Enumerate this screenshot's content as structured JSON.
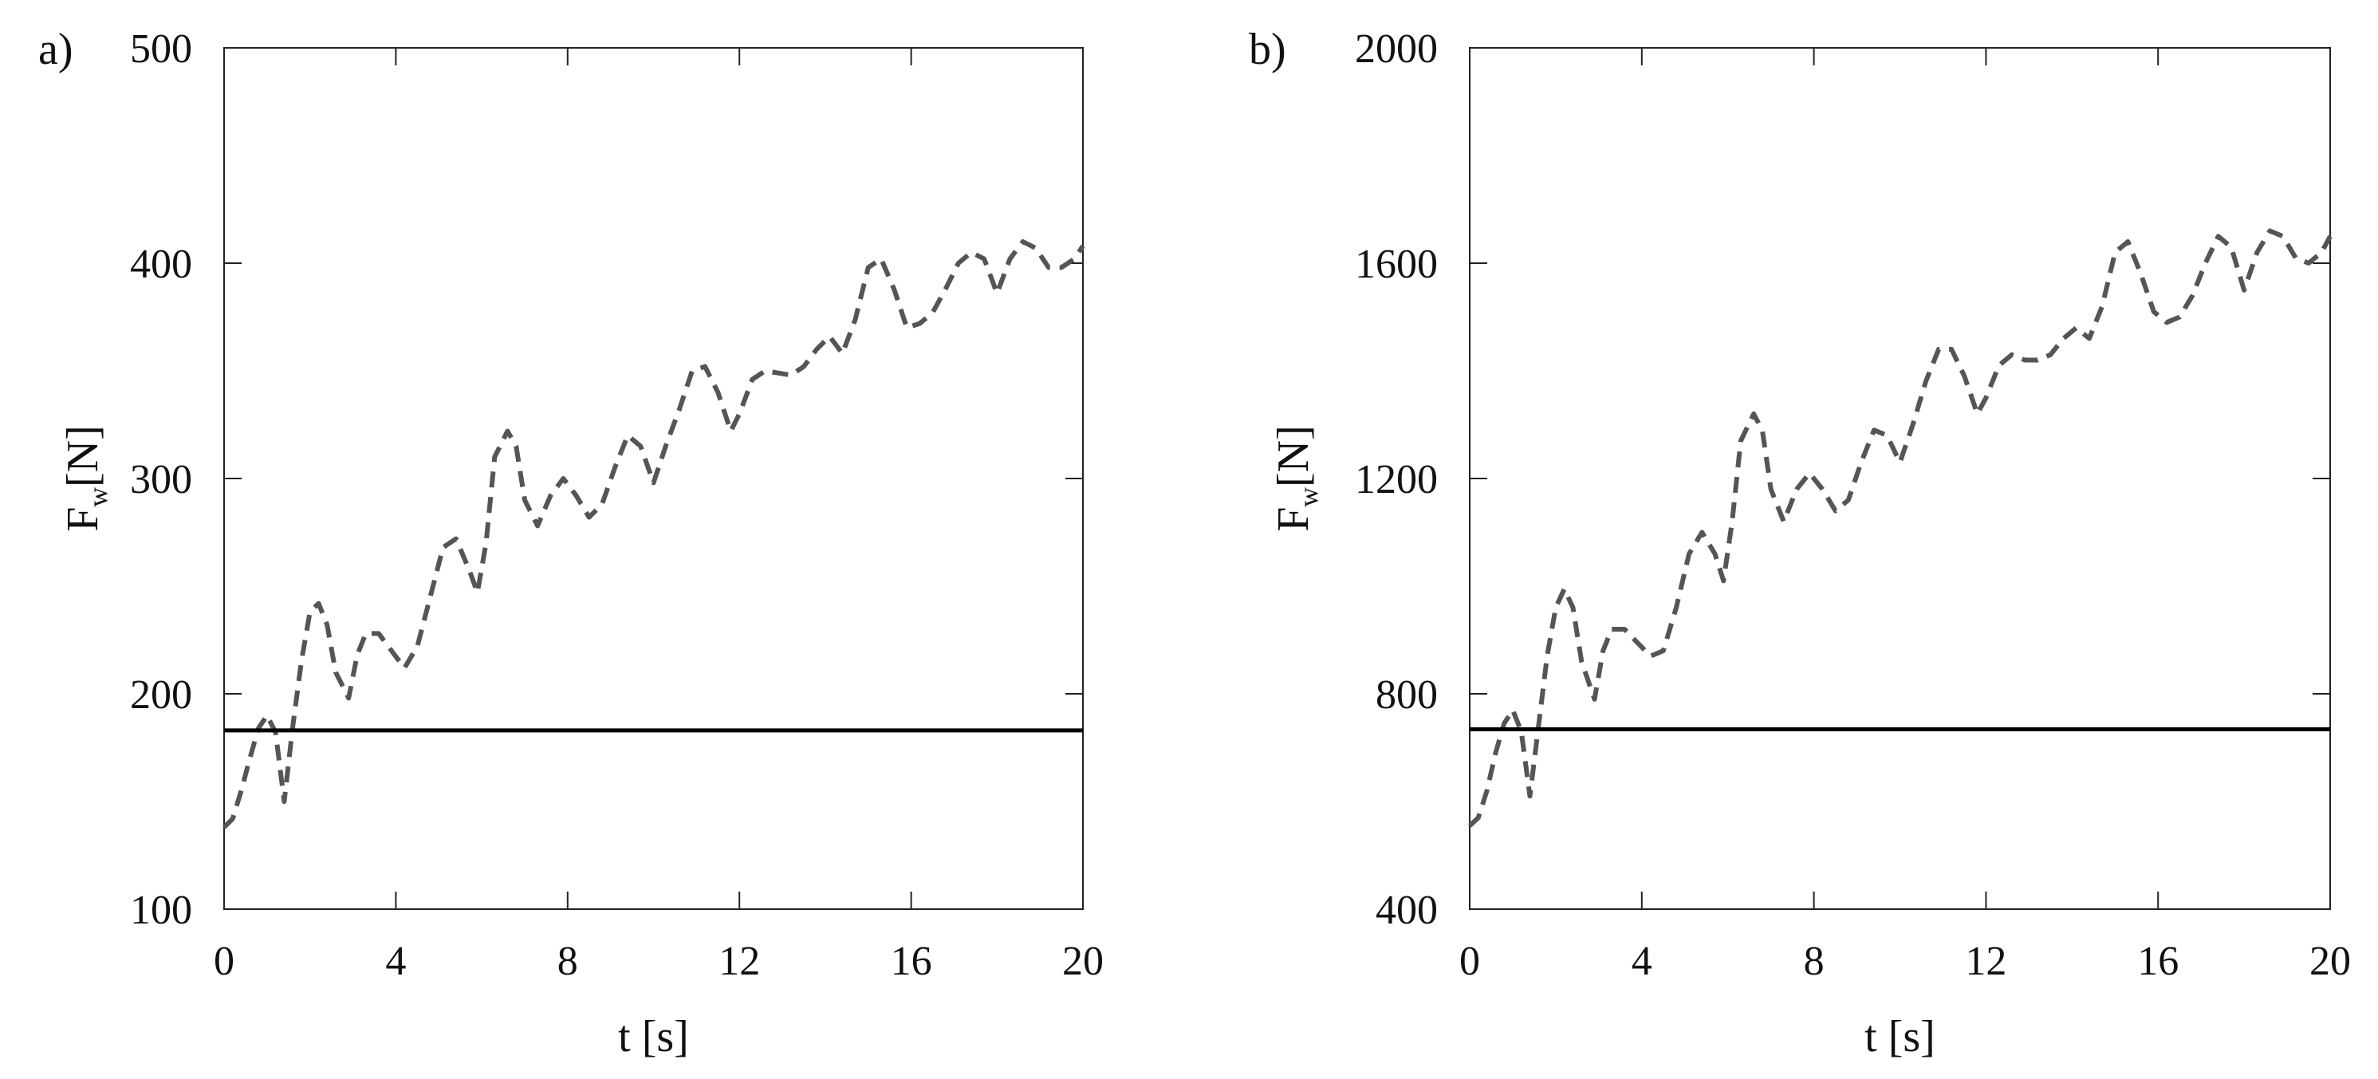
{
  "chart_data": [
    {
      "type": "line",
      "panel_label": "a)",
      "xlabel": "t [s]",
      "ylabel_main": "F",
      "ylabel_sub": "w",
      "ylabel_unit": "[N]",
      "xlim": [
        0,
        20
      ],
      "ylim": [
        100,
        500
      ],
      "xticks": [
        0,
        4,
        8,
        12,
        16,
        20
      ],
      "yticks": [
        100,
        200,
        300,
        400,
        500
      ],
      "grid": false,
      "series": [
        {
          "style": "dashed",
          "color": "#555555",
          "x": [
            0,
            0.2,
            0.4,
            0.6,
            0.8,
            1.0,
            1.2,
            1.4,
            1.6,
            1.8,
            2.0,
            2.2,
            2.4,
            2.6,
            2.9,
            3.1,
            3.3,
            3.6,
            3.9,
            4.2,
            4.5,
            4.8,
            5.1,
            5.4,
            5.7,
            5.9,
            6.1,
            6.3,
            6.6,
            6.8,
            7.0,
            7.3,
            7.6,
            7.9,
            8.2,
            8.5,
            8.8,
            9.1,
            9.4,
            9.7,
            10.0,
            10.3,
            10.6,
            10.9,
            11.2,
            11.5,
            11.8,
            12.0,
            12.3,
            12.6,
            12.9,
            13.2,
            13.5,
            13.8,
            14.1,
            14.4,
            14.7,
            15.0,
            15.3,
            15.6,
            15.9,
            16.2,
            16.5,
            16.8,
            17.1,
            17.4,
            17.7,
            18.0,
            18.3,
            18.6,
            18.9,
            19.2,
            19.5,
            19.8,
            20.0
          ],
          "y": [
            138,
            142,
            155,
            170,
            184,
            190,
            182,
            150,
            185,
            215,
            238,
            242,
            232,
            210,
            198,
            218,
            228,
            228,
            220,
            212,
            222,
            245,
            268,
            272,
            258,
            247,
            270,
            310,
            322,
            315,
            290,
            278,
            292,
            300,
            292,
            282,
            288,
            305,
            320,
            315,
            298,
            316,
            332,
            350,
            352,
            340,
            322,
            330,
            346,
            350,
            349,
            348,
            352,
            360,
            366,
            358,
            374,
            398,
            402,
            388,
            370,
            372,
            377,
            388,
            400,
            405,
            402,
            386,
            402,
            410,
            407,
            398,
            398,
            402,
            408
          ]
        },
        {
          "style": "solid",
          "color": "#000000",
          "x": [
            0,
            20
          ],
          "y": [
            183,
            183
          ]
        }
      ]
    },
    {
      "type": "line",
      "panel_label": "b)",
      "xlabel": "t [s]",
      "ylabel_main": "F",
      "ylabel_sub": "w",
      "ylabel_unit": "[N]",
      "xlim": [
        0,
        20
      ],
      "ylim": [
        400,
        2000
      ],
      "xticks": [
        0,
        4,
        8,
        12,
        16,
        20
      ],
      "yticks": [
        400,
        800,
        1200,
        1600,
        2000
      ],
      "grid": false,
      "series": [
        {
          "style": "dashed",
          "color": "#555555",
          "x": [
            0,
            0.2,
            0.4,
            0.6,
            0.8,
            1.0,
            1.2,
            1.4,
            1.6,
            1.8,
            2.0,
            2.2,
            2.4,
            2.6,
            2.9,
            3.1,
            3.3,
            3.6,
            3.9,
            4.2,
            4.5,
            4.8,
            5.1,
            5.4,
            5.7,
            5.9,
            6.1,
            6.3,
            6.6,
            6.8,
            7.0,
            7.3,
            7.6,
            7.9,
            8.2,
            8.5,
            8.8,
            9.1,
            9.4,
            9.7,
            10.0,
            10.3,
            10.6,
            10.9,
            11.2,
            11.5,
            11.8,
            12.0,
            12.3,
            12.6,
            12.9,
            13.2,
            13.5,
            13.8,
            14.1,
            14.4,
            14.7,
            15.0,
            15.3,
            15.6,
            15.9,
            16.2,
            16.5,
            16.8,
            17.1,
            17.4,
            17.7,
            18.0,
            18.3,
            18.6,
            18.9,
            19.2,
            19.5,
            19.8,
            20.0
          ],
          "y": [
            555,
            570,
            620,
            690,
            745,
            770,
            730,
            610,
            740,
            870,
            960,
            995,
            960,
            860,
            790,
            880,
            920,
            920,
            895,
            870,
            880,
            960,
            1060,
            1100,
            1060,
            1010,
            1120,
            1270,
            1320,
            1290,
            1180,
            1120,
            1180,
            1210,
            1180,
            1140,
            1160,
            1230,
            1290,
            1280,
            1230,
            1300,
            1380,
            1440,
            1440,
            1390,
            1320,
            1350,
            1410,
            1430,
            1420,
            1420,
            1430,
            1460,
            1480,
            1460,
            1520,
            1620,
            1640,
            1580,
            1510,
            1490,
            1500,
            1540,
            1600,
            1650,
            1630,
            1550,
            1620,
            1660,
            1650,
            1610,
            1600,
            1620,
            1650
          ]
        },
        {
          "style": "solid",
          "color": "#000000",
          "x": [
            0,
            20
          ],
          "y": [
            734,
            734
          ]
        }
      ]
    }
  ]
}
